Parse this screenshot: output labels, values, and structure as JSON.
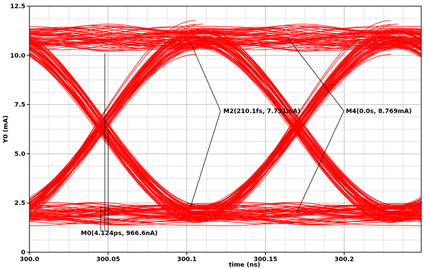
{
  "chart_data": {
    "type": "line",
    "xlabel": "time (ns)",
    "ylabel": "Y0 (mA)",
    "xlim": [
      300.0,
      300.249
    ],
    "ylim": [
      0,
      12.5
    ],
    "x_ticks": [
      300.0,
      300.05,
      300.1,
      300.15,
      300.2
    ],
    "x_tick_labels": [
      "300.0",
      "300.05",
      "300.1",
      "300.15",
      "300.2"
    ],
    "y_ticks": [
      0,
      2.5,
      5.0,
      7.5,
      10.0,
      12.5
    ],
    "y_tick_labels": [
      "0",
      "2.5",
      "5.0",
      "7.5",
      "10.0",
      "12.5"
    ],
    "grid": true,
    "eye_diagram": {
      "high_level_ma": 10.9,
      "low_level_ma": 1.95,
      "crossing_level_ma": 6.2,
      "crossing_times_ns": [
        300.046,
        300.17
      ],
      "unit_interval_ns": 0.124,
      "trace_color": "#ff0000"
    },
    "markers": [
      {
        "label": "M0(4.124ps, 966.6nA)",
        "x": 300.047,
        "y": 6.2
      },
      {
        "label": "M2(210.1fs, 7.751mA)",
        "x": 300.105,
        "y": 10.65
      },
      {
        "label": "M4(0.0s, 8.769mA)",
        "x": 300.182,
        "y": 10.85
      }
    ]
  }
}
